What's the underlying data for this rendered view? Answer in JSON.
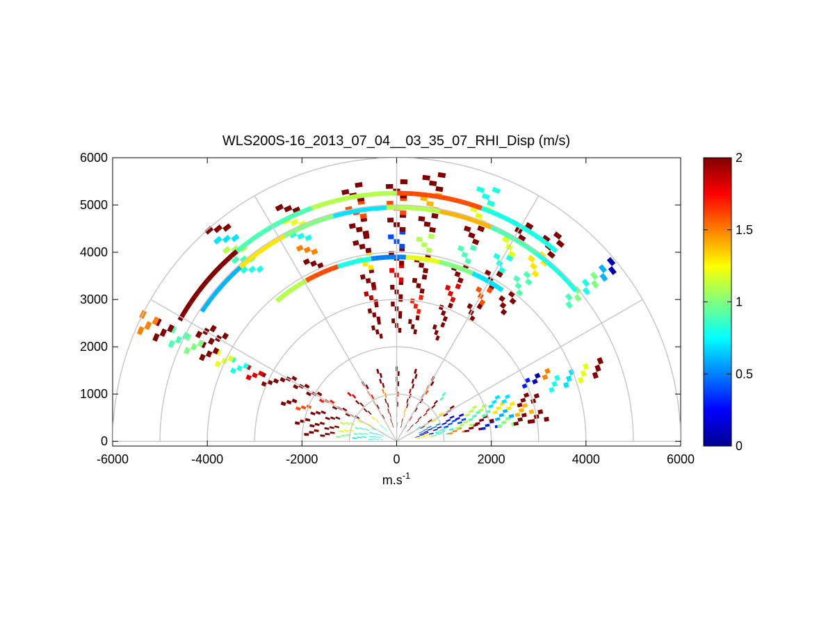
{
  "chart_data": {
    "type": "heatmap",
    "subtype": "polar RHI sector scan",
    "title": "WLS200S-16_2013_07_04__03_35_07_RHI_Disp (m/s)",
    "xlabel": "m.s",
    "xlabel_superscript": "-1",
    "ylabel": "",
    "xlim": [
      -6000,
      6000
    ],
    "ylim": [
      -100,
      6000
    ],
    "x_ticks": [
      -6000,
      -4000,
      -2000,
      0,
      2000,
      4000,
      6000
    ],
    "x_tick_labels": [
      "-6000",
      "-4000",
      "-2000",
      "0",
      "2000",
      "4000",
      "6000"
    ],
    "y_ticks": [
      0,
      1000,
      2000,
      3000,
      4000,
      5000,
      6000
    ],
    "y_tick_labels": [
      "0",
      "1000",
      "2000",
      "3000",
      "4000",
      "5000",
      "6000"
    ],
    "range_rings_m": [
      1000,
      2000,
      3000,
      4000,
      5000,
      6000
    ],
    "angle_spokes_deg": [
      0,
      30,
      60,
      90,
      120,
      150,
      180
    ],
    "grid_color": "#c8c8c8",
    "colorbar": {
      "min": 0,
      "max": 2,
      "ticks": [
        0,
        0.5,
        1,
        1.5,
        2
      ],
      "tick_labels": [
        "0",
        "0.5",
        "1",
        "1.5",
        "2"
      ],
      "colormap": "jet"
    },
    "cell_angular_width_deg": 1.6,
    "cell_range_depth_m": 100,
    "scan_beams": [
      {
        "angle": 10,
        "rmin": 400,
        "rmax": 3200,
        "vals": [
          1.2,
          0.9,
          1.5,
          2,
          0.3,
          1,
          2,
          2
        ]
      },
      {
        "angle": 14,
        "rmin": 400,
        "rmax": 3000,
        "vals": [
          0.2,
          0.8,
          1.1,
          2,
          0.6,
          1.4
        ]
      },
      {
        "angle": 18,
        "rmin": 500,
        "rmax": 3200,
        "vals": [
          0.1,
          0.4,
          0.9,
          1.3,
          2
        ]
      },
      {
        "angle": 22,
        "rmin": 500,
        "rmax": 2600,
        "vals": [
          0.5,
          0.2,
          1.1,
          0.7
        ]
      },
      {
        "angle": 20,
        "rmin": 3400,
        "rmax": 4700,
        "vals": [
          0.8,
          0.7,
          1.2,
          2
        ]
      },
      {
        "angle": 25,
        "rmin": 2900,
        "rmax": 3600,
        "vals": [
          0.3,
          0.1,
          1.5
        ]
      },
      {
        "angle": 40,
        "rmin": 4600,
        "rmax": 6000,
        "vals": [
          0.9,
          1,
          0.8,
          1,
          0.6,
          0.1
        ]
      },
      {
        "angle": 30,
        "rmin": 300,
        "rmax": 1400,
        "vals": [
          0.7,
          2,
          1.3,
          2
        ]
      },
      {
        "angle": 45,
        "rmin": 300,
        "rmax": 1500,
        "vals": [
          2,
          2,
          1.8,
          2,
          0.9
        ]
      },
      {
        "angle": 60,
        "rmin": 300,
        "rmax": 1600,
        "vals": [
          2,
          1.8,
          2,
          2,
          1.6,
          2
        ]
      },
      {
        "angle": 75,
        "rmin": 300,
        "rmax": 1600,
        "vals": [
          2,
          1.4,
          2,
          1.9,
          2,
          2
        ]
      },
      {
        "angle": 90,
        "rmin": 300,
        "rmax": 1600,
        "vals": [
          2,
          1.2,
          2,
          1.7,
          2,
          2
        ]
      },
      {
        "angle": 105,
        "rmin": 300,
        "rmax": 1600,
        "vals": [
          2,
          1.9,
          2,
          1.5,
          2,
          2
        ]
      },
      {
        "angle": 120,
        "rmin": 300,
        "rmax": 1500,
        "vals": [
          1.1,
          2,
          2,
          1.7,
          2
        ]
      },
      {
        "angle": 135,
        "rmin": 300,
        "rmax": 1500,
        "vals": [
          0.9,
          1.3,
          2,
          2,
          1.8
        ]
      },
      {
        "angle": 150,
        "rmin": 300,
        "rmax": 2800,
        "vals": [
          0.8,
          1.2,
          2,
          2,
          1.7,
          2,
          2,
          2
        ]
      },
      {
        "angle": 160,
        "rmin": 300,
        "rmax": 2600,
        "vals": [
          0.7,
          0.9,
          1.1,
          2,
          2,
          1.6,
          2
        ]
      },
      {
        "angle": 168,
        "rmin": 300,
        "rmax": 2200,
        "vals": [
          0.8,
          0.9,
          1.2,
          2,
          2,
          2
        ]
      },
      {
        "angle": 174,
        "rmin": 300,
        "rmax": 2000,
        "vals": [
          0.8,
          0.7,
          1,
          2,
          2
        ]
      },
      {
        "angle": 155,
        "rmin": 2800,
        "rmax": 6000,
        "vals": [
          2,
          1.8,
          0.8,
          1.2,
          2,
          1,
          0.9,
          2,
          1.5
        ]
      },
      {
        "angle": 150,
        "rmin": 4200,
        "rmax": 4800,
        "vals": [
          2,
          2
        ]
      },
      {
        "angle": 130,
        "rmin": 4600,
        "rmax": 6000,
        "vals": [
          0.8,
          0.9,
          1.1,
          0.7,
          2
        ]
      },
      {
        "angle": 115,
        "rmin": 4000,
        "rmax": 5600,
        "vals": [
          2,
          1.5,
          0.8,
          1.2,
          2
        ]
      },
      {
        "angle": 100,
        "rmin": 2200,
        "rmax": 5500,
        "vals": [
          2,
          2,
          1.9,
          2,
          1.3,
          2,
          2,
          1.6,
          2
        ]
      },
      {
        "angle": 90,
        "rmin": 2300,
        "rmax": 5500,
        "vals": [
          2,
          2,
          2,
          1.8,
          2,
          0.4,
          2,
          1.6,
          2
        ]
      },
      {
        "angle": 82,
        "rmin": 2300,
        "rmax": 5800,
        "vals": [
          2,
          1.7,
          2,
          2,
          1.1,
          2,
          1.4,
          2
        ]
      },
      {
        "angle": 70,
        "rmin": 2300,
        "rmax": 5800,
        "vals": [
          2,
          2,
          1.8,
          2,
          0.9,
          2,
          1.2,
          0.8
        ]
      },
      {
        "angle": 60,
        "rmin": 3000,
        "rmax": 5400,
        "vals": [
          2,
          1.6,
          2,
          0.8,
          1.2,
          2
        ]
      },
      {
        "angle": 52,
        "rmin": 3500,
        "rmax": 5600,
        "vals": [
          2,
          0.9,
          1.3,
          2
        ]
      }
    ],
    "range_bands": [
      {
        "r": 3850,
        "a0": 55,
        "a1": 130,
        "vals": [
          0.7,
          1,
          1.2,
          0.5,
          0.8,
          1.6,
          1.1
        ]
      },
      {
        "r": 4900,
        "a0": 40,
        "a1": 145,
        "vals": [
          0.8,
          0.9,
          1.4,
          1.1,
          0.7,
          1,
          1.3,
          0.6
        ]
      },
      {
        "r": 5200,
        "a0": 50,
        "a1": 150,
        "vals": [
          0.8,
          1.6,
          1.1,
          0.9,
          2
        ]
      }
    ]
  }
}
